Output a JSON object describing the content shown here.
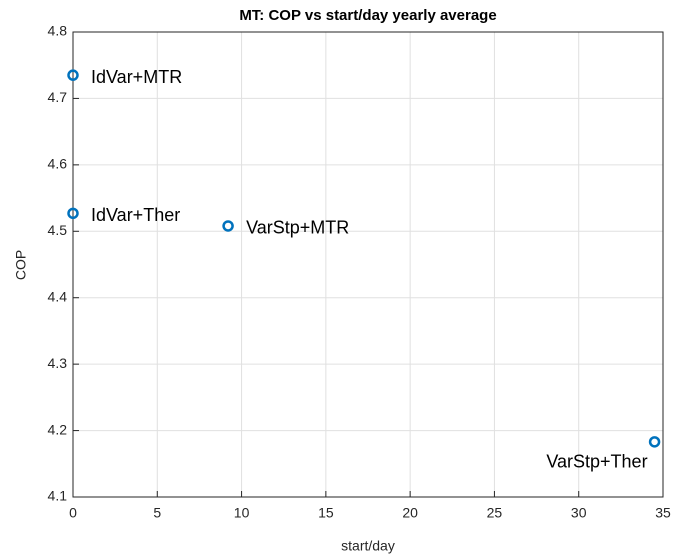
{
  "chart_data": {
    "type": "scatter",
    "title": "MT: COP vs start/day yearly average",
    "x_label": "start/day",
    "y_label": "COP",
    "series": [
      {
        "name": null,
        "color": "#0072bd",
        "x": [
          0,
          0,
          9.2,
          34.5
        ],
        "values": [
          4.735,
          4.527,
          4.508,
          4.183
        ],
        "labels": [
          "IdVar+MTR",
          "IdVar+Ther",
          "VarStp+MTR",
          "VarStp+Ther"
        ]
      }
    ],
    "xlim": [
      0,
      35
    ],
    "xticks": [
      0,
      5,
      10,
      15,
      20,
      25,
      30,
      35
    ],
    "ylim": [
      4.1,
      4.8
    ],
    "yticks": [
      4.1,
      4.2,
      4.3,
      4.4,
      4.5,
      4.6,
      4.7,
      4.8
    ],
    "grid": true
  }
}
